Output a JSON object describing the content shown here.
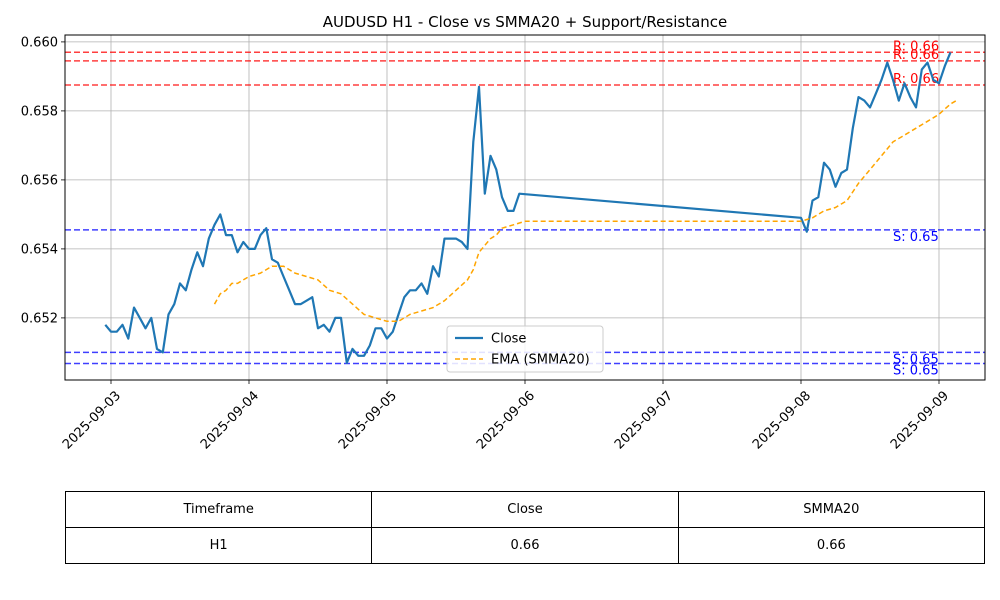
{
  "chart_data": {
    "type": "line",
    "title": "AUDUSD H1 - Close vs SMMA20 + Support/Resistance",
    "xlabel": "",
    "ylabel": "",
    "x_ticks": [
      "2025-09-03",
      "2025-09-04",
      "2025-09-05",
      "2025-09-06",
      "2025-09-07",
      "2025-09-08",
      "2025-09-09"
    ],
    "y_ticks": [
      "0.652",
      "0.654",
      "0.656",
      "0.658",
      "0.660"
    ],
    "xlim": [
      "2025-09-02T16:00",
      "2025-09-09T08:00"
    ],
    "ylim": [
      0.6502,
      0.6602
    ],
    "grid": true,
    "legend_position": "lower center",
    "series": [
      {
        "name": "Close",
        "color": "#1f77b4",
        "style": "solid",
        "points": [
          [
            "2025-09-02T23:00",
            0.6518
          ],
          [
            "2025-09-03T00:00",
            0.6516
          ],
          [
            "2025-09-03T01:00",
            0.6516
          ],
          [
            "2025-09-03T02:00",
            0.6518
          ],
          [
            "2025-09-03T03:00",
            0.6514
          ],
          [
            "2025-09-03T04:00",
            0.6523
          ],
          [
            "2025-09-03T05:00",
            0.652
          ],
          [
            "2025-09-03T06:00",
            0.6517
          ],
          [
            "2025-09-03T07:00",
            0.652
          ],
          [
            "2025-09-03T08:00",
            0.6511
          ],
          [
            "2025-09-03T09:00",
            0.651
          ],
          [
            "2025-09-03T10:00",
            0.6521
          ],
          [
            "2025-09-03T11:00",
            0.6524
          ],
          [
            "2025-09-03T12:00",
            0.653
          ],
          [
            "2025-09-03T13:00",
            0.6528
          ],
          [
            "2025-09-03T14:00",
            0.6534
          ],
          [
            "2025-09-03T15:00",
            0.6539
          ],
          [
            "2025-09-03T16:00",
            0.6535
          ],
          [
            "2025-09-03T17:00",
            0.6543
          ],
          [
            "2025-09-03T18:00",
            0.6547
          ],
          [
            "2025-09-03T19:00",
            0.655
          ],
          [
            "2025-09-03T20:00",
            0.6544
          ],
          [
            "2025-09-03T21:00",
            0.6544
          ],
          [
            "2025-09-03T22:00",
            0.6539
          ],
          [
            "2025-09-03T23:00",
            0.6542
          ],
          [
            "2025-09-04T00:00",
            0.654
          ],
          [
            "2025-09-04T01:00",
            0.654
          ],
          [
            "2025-09-04T02:00",
            0.6544
          ],
          [
            "2025-09-04T03:00",
            0.6546
          ],
          [
            "2025-09-04T04:00",
            0.6537
          ],
          [
            "2025-09-04T05:00",
            0.6536
          ],
          [
            "2025-09-04T06:00",
            0.6532
          ],
          [
            "2025-09-04T07:00",
            0.6528
          ],
          [
            "2025-09-04T08:00",
            0.6524
          ],
          [
            "2025-09-04T09:00",
            0.6524
          ],
          [
            "2025-09-04T10:00",
            0.6525
          ],
          [
            "2025-09-04T11:00",
            0.6526
          ],
          [
            "2025-09-04T12:00",
            0.6517
          ],
          [
            "2025-09-04T13:00",
            0.6518
          ],
          [
            "2025-09-04T14:00",
            0.6516
          ],
          [
            "2025-09-04T15:00",
            0.652
          ],
          [
            "2025-09-04T16:00",
            0.652
          ],
          [
            "2025-09-04T17:00",
            0.6507
          ],
          [
            "2025-09-04T18:00",
            0.6511
          ],
          [
            "2025-09-04T19:00",
            0.6509
          ],
          [
            "2025-09-04T20:00",
            0.6509
          ],
          [
            "2025-09-04T21:00",
            0.6512
          ],
          [
            "2025-09-04T22:00",
            0.6517
          ],
          [
            "2025-09-04T23:00",
            0.6517
          ],
          [
            "2025-09-05T00:00",
            0.6514
          ],
          [
            "2025-09-05T01:00",
            0.6516
          ],
          [
            "2025-09-05T02:00",
            0.6521
          ],
          [
            "2025-09-05T03:00",
            0.6526
          ],
          [
            "2025-09-05T04:00",
            0.6528
          ],
          [
            "2025-09-05T05:00",
            0.6528
          ],
          [
            "2025-09-05T06:00",
            0.653
          ],
          [
            "2025-09-05T07:00",
            0.6527
          ],
          [
            "2025-09-05T08:00",
            0.6535
          ],
          [
            "2025-09-05T09:00",
            0.6532
          ],
          [
            "2025-09-05T10:00",
            0.6543
          ],
          [
            "2025-09-05T11:00",
            0.6543
          ],
          [
            "2025-09-05T12:00",
            0.6543
          ],
          [
            "2025-09-05T13:00",
            0.6542
          ],
          [
            "2025-09-05T14:00",
            0.654
          ],
          [
            "2025-09-05T15:00",
            0.6571
          ],
          [
            "2025-09-05T16:00",
            0.6587
          ],
          [
            "2025-09-05T17:00",
            0.6556
          ],
          [
            "2025-09-05T18:00",
            0.6567
          ],
          [
            "2025-09-05T19:00",
            0.6563
          ],
          [
            "2025-09-05T20:00",
            0.6555
          ],
          [
            "2025-09-05T21:00",
            0.6551
          ],
          [
            "2025-09-05T22:00",
            0.6551
          ],
          [
            "2025-09-05T23:00",
            0.6556
          ],
          [
            "2025-09-08T00:00",
            0.6549
          ],
          [
            "2025-09-08T01:00",
            0.6545
          ],
          [
            "2025-09-08T02:00",
            0.6554
          ],
          [
            "2025-09-08T03:00",
            0.6555
          ],
          [
            "2025-09-08T04:00",
            0.6565
          ],
          [
            "2025-09-08T05:00",
            0.6563
          ],
          [
            "2025-09-08T06:00",
            0.6558
          ],
          [
            "2025-09-08T07:00",
            0.6562
          ],
          [
            "2025-09-08T08:00",
            0.6563
          ],
          [
            "2025-09-08T09:00",
            0.6575
          ],
          [
            "2025-09-08T10:00",
            0.6584
          ],
          [
            "2025-09-08T11:00",
            0.6583
          ],
          [
            "2025-09-08T12:00",
            0.6581
          ],
          [
            "2025-09-08T13:00",
            0.6585
          ],
          [
            "2025-09-08T14:00",
            0.6589
          ],
          [
            "2025-09-08T15:00",
            0.6594
          ],
          [
            "2025-09-08T16:00",
            0.6589
          ],
          [
            "2025-09-08T17:00",
            0.6583
          ],
          [
            "2025-09-08T18:00",
            0.6588
          ],
          [
            "2025-09-08T19:00",
            0.6584
          ],
          [
            "2025-09-08T20:00",
            0.6581
          ],
          [
            "2025-09-08T21:00",
            0.6592
          ],
          [
            "2025-09-08T22:00",
            0.6594
          ],
          [
            "2025-09-08T23:00",
            0.6589
          ],
          [
            "2025-09-09T00:00",
            0.6588
          ],
          [
            "2025-09-09T01:00",
            0.6593
          ],
          [
            "2025-09-09T02:00",
            0.6597
          ]
        ]
      },
      {
        "name": "EMA (SMMA20)",
        "color": "#ffa500",
        "style": "dashed",
        "points": [
          [
            "2025-09-03T18:00",
            0.6524
          ],
          [
            "2025-09-03T19:00",
            0.6527
          ],
          [
            "2025-09-03T20:00",
            0.6528
          ],
          [
            "2025-09-03T21:00",
            0.653
          ],
          [
            "2025-09-03T22:00",
            0.653
          ],
          [
            "2025-09-03T23:00",
            0.6531
          ],
          [
            "2025-09-04T00:00",
            0.6532
          ],
          [
            "2025-09-04T02:00",
            0.6533
          ],
          [
            "2025-09-04T04:00",
            0.6535
          ],
          [
            "2025-09-04T06:00",
            0.6535
          ],
          [
            "2025-09-04T08:00",
            0.6533
          ],
          [
            "2025-09-04T10:00",
            0.6532
          ],
          [
            "2025-09-04T12:00",
            0.6531
          ],
          [
            "2025-09-04T14:00",
            0.6528
          ],
          [
            "2025-09-04T16:00",
            0.6527
          ],
          [
            "2025-09-04T18:00",
            0.6524
          ],
          [
            "2025-09-04T20:00",
            0.6521
          ],
          [
            "2025-09-04T22:00",
            0.652
          ],
          [
            "2025-09-05T00:00",
            0.6519
          ],
          [
            "2025-09-05T02:00",
            0.6519
          ],
          [
            "2025-09-05T04:00",
            0.6521
          ],
          [
            "2025-09-05T06:00",
            0.6522
          ],
          [
            "2025-09-05T08:00",
            0.6523
          ],
          [
            "2025-09-05T10:00",
            0.6525
          ],
          [
            "2025-09-05T12:00",
            0.6528
          ],
          [
            "2025-09-05T14:00",
            0.6531
          ],
          [
            "2025-09-05T15:00",
            0.6534
          ],
          [
            "2025-09-05T16:00",
            0.6539
          ],
          [
            "2025-09-05T17:00",
            0.6541
          ],
          [
            "2025-09-05T18:00",
            0.6543
          ],
          [
            "2025-09-05T19:00",
            0.6544
          ],
          [
            "2025-09-05T20:00",
            0.6546
          ],
          [
            "2025-09-05T22:00",
            0.6547
          ],
          [
            "2025-09-06T00:00",
            0.6548
          ],
          [
            "2025-09-08T00:00",
            0.6548
          ],
          [
            "2025-09-08T02:00",
            0.6549
          ],
          [
            "2025-09-08T04:00",
            0.6551
          ],
          [
            "2025-09-08T06:00",
            0.6552
          ],
          [
            "2025-09-08T08:00",
            0.6554
          ],
          [
            "2025-09-08T10:00",
            0.6559
          ],
          [
            "2025-09-08T12:00",
            0.6563
          ],
          [
            "2025-09-08T14:00",
            0.6567
          ],
          [
            "2025-09-08T16:00",
            0.6571
          ],
          [
            "2025-09-08T18:00",
            0.6573
          ],
          [
            "2025-09-08T20:00",
            0.6575
          ],
          [
            "2025-09-08T22:00",
            0.6577
          ],
          [
            "2025-09-09T00:00",
            0.6579
          ],
          [
            "2025-09-09T02:00",
            0.6582
          ],
          [
            "2025-09-09T03:00",
            0.6583
          ]
        ]
      }
    ],
    "resistance_levels": [
      {
        "value": 0.6597,
        "label": "R: 0.66"
      },
      {
        "value": 0.65945,
        "label": "R: 0.66"
      },
      {
        "value": 0.65875,
        "label": "R: 0.66"
      }
    ],
    "support_levels": [
      {
        "value": 0.65455,
        "label": "S: 0.65"
      },
      {
        "value": 0.651,
        "label": "S: 0.65"
      },
      {
        "value": 0.65068,
        "label": "S: 0.65"
      }
    ],
    "level_colors": {
      "resistance": "#ff0000",
      "support": "#0000ff"
    }
  },
  "table": {
    "headers": [
      "Timeframe",
      "Close",
      "SMMA20"
    ],
    "rows": [
      [
        "H1",
        "0.66",
        "0.66"
      ]
    ]
  }
}
